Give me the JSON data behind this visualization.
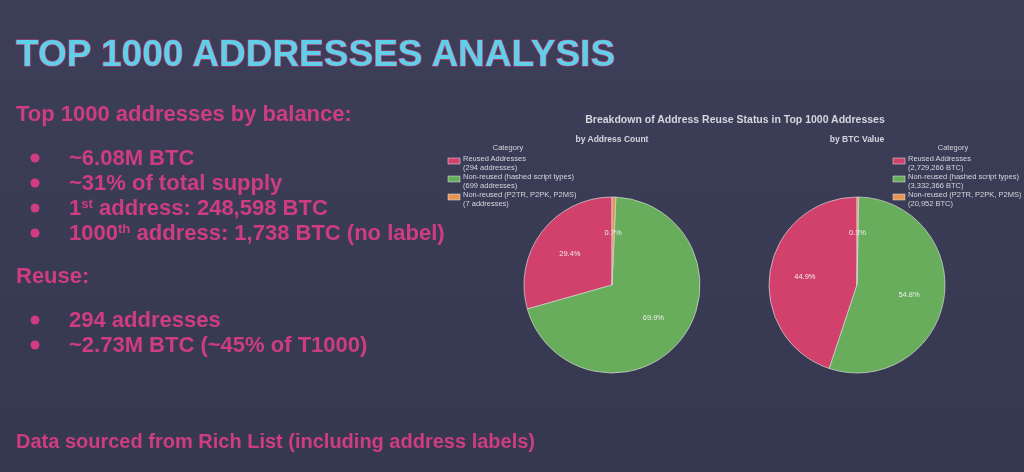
{
  "chart_data": [
    {
      "type": "other",
      "title": "TOP 1000 ADDRESSES ANALYSIS",
      "annotations": [
        "Data sourced from Rich List (including address labels)"
      ]
    },
    {
      "type": "other",
      "title": "Top 1000 addresses by balance:",
      "annotations": [
        "~6.08M BTC",
        "~31% of total supply",
        "1$^{st}$ address: 248,598 BTC",
        "1000$^{th}$ address: 1,738 BTC (no label)"
      ]
    },
    {
      "type": "other",
      "title": "Reuse:",
      "annotations": [
        "294 addresses",
        "~2.73M BTC (~45% of T1000)"
      ]
    },
    {
      "type": "pie",
      "title": "Breakdown of Address Reuse Status in Top 1000 Addresses",
      "subtitle": "by Address Count",
      "legend_title": "Category",
      "legend": "top left",
      "categories": [
        "Reused Addresses\n(294 addresses)",
        "Non-reused (hashed script types)\n(699 addresses)",
        "Non-reused (P2TR, P2PK, P2MS)\n(7 addresses)"
      ],
      "values": [
        29.4,
        69.9,
        0.7
      ],
      "value_labels": [
        "29.4%",
        "69.9%",
        "0.7%"
      ],
      "colors": [
        "#d2416b",
        "#67ad5b",
        "#e59452"
      ]
    },
    {
      "type": "pie",
      "subtitle": "by BTC Value",
      "legend_title": "Category",
      "legend": "top right",
      "categories": [
        "Reused Addresses\n(2,729,266 BTC)",
        "Non-reused (hashed script types)\n(3,332,366 BTC)",
        "Non-reused (P2TR, P2PK, P2MS)\n(20,952 BTC)"
      ],
      "values": [
        44.9,
        54.8,
        0.3
      ],
      "value_labels": [
        "44.9%",
        "54.8%",
        "0.3%"
      ],
      "colors": [
        "#d2416b",
        "#67ad5b",
        "#e59452"
      ]
    }
  ]
}
